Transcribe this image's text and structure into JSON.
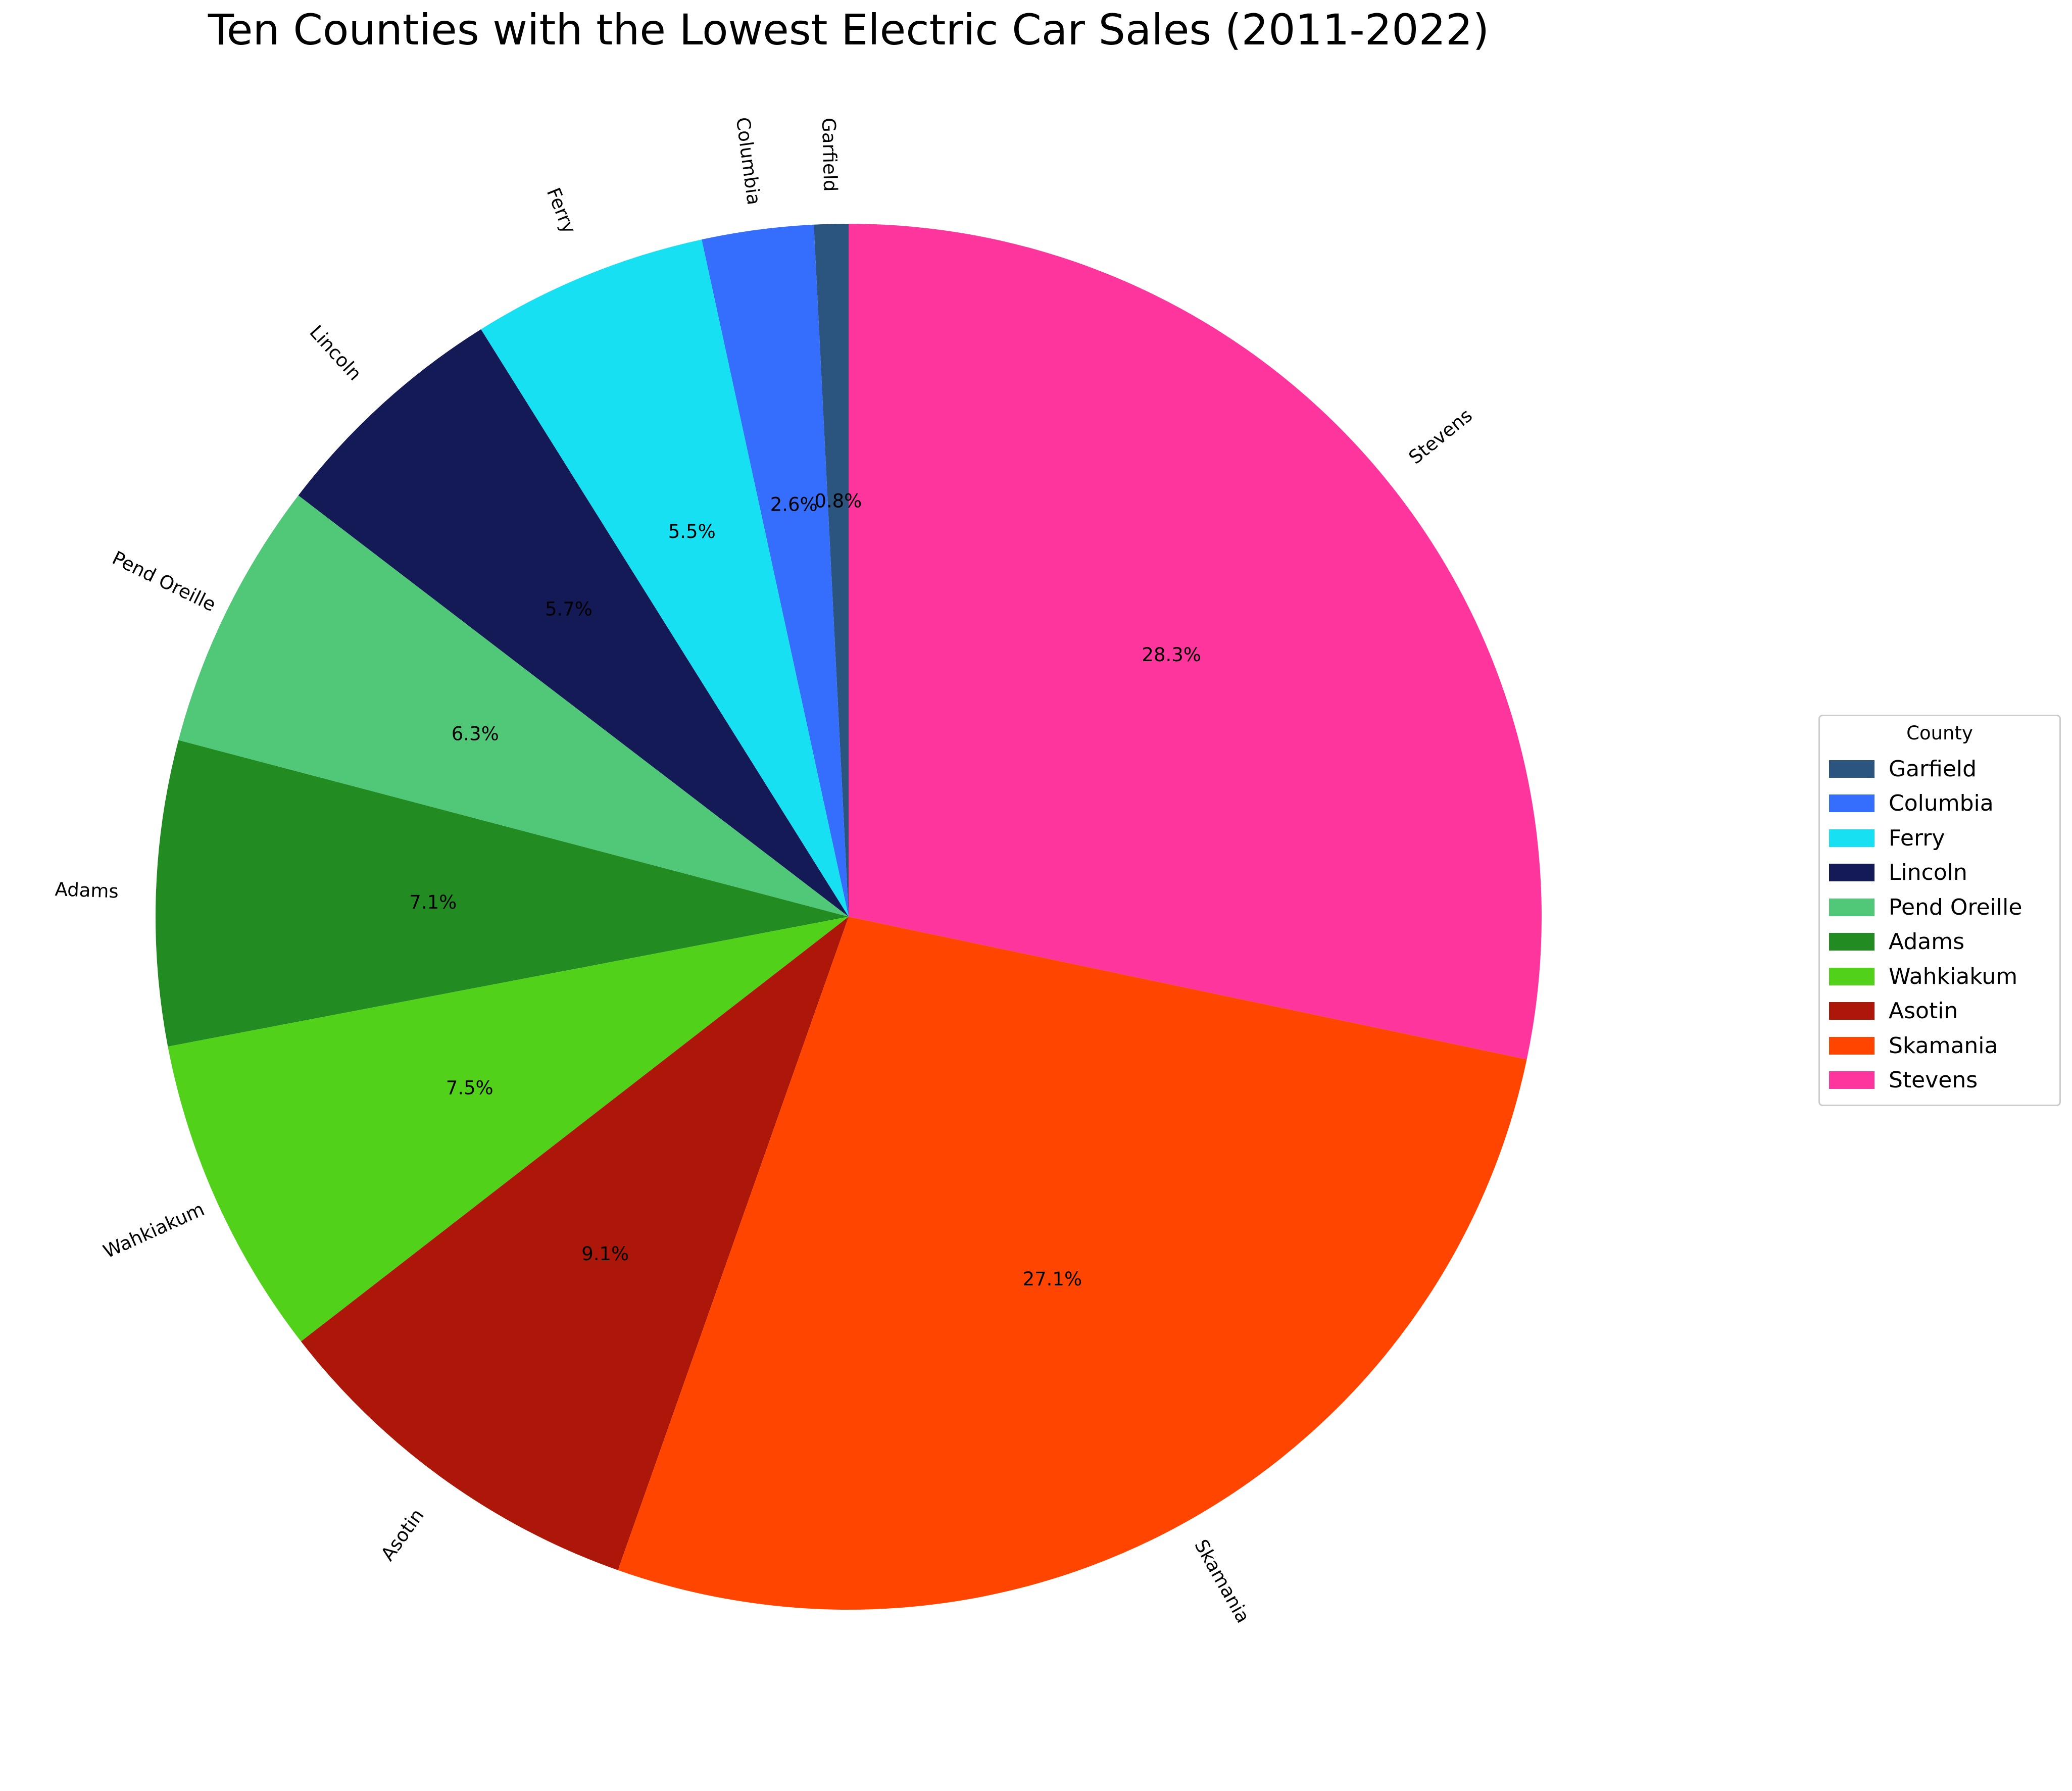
{
  "chart_data": {
    "type": "pie",
    "title": "Ten Counties with the Lowest Electric Car Sales (2011-2022)",
    "legend_title": "County",
    "legend_placement": "center-right",
    "start_angle_deg": 90,
    "direction": "counterclockwise",
    "slices": [
      {
        "name": "Garfield",
        "pct_label": "0.8%",
        "value": 0.8,
        "color": "#2b557f"
      },
      {
        "name": "Columbia",
        "pct_label": "2.6%",
        "value": 2.6,
        "color": "#356dfc"
      },
      {
        "name": "Ferry",
        "pct_label": "5.5%",
        "value": 5.5,
        "color": "#17e0f2"
      },
      {
        "name": "Lincoln",
        "pct_label": "5.7%",
        "value": 5.7,
        "color": "#141a55"
      },
      {
        "name": "Pend Oreille",
        "pct_label": "6.3%",
        "value": 6.3,
        "color": "#50c878"
      },
      {
        "name": "Adams",
        "pct_label": "7.1%",
        "value": 7.1,
        "color": "#228b22"
      },
      {
        "name": "Wahkiakum",
        "pct_label": "7.5%",
        "value": 7.5,
        "color": "#51d11a"
      },
      {
        "name": "Asotin",
        "pct_label": "9.1%",
        "value": 9.1,
        "color": "#ad1709"
      },
      {
        "name": "Skamania",
        "pct_label": "27.1%",
        "value": 27.1,
        "color": "#ff4500"
      },
      {
        "name": "Stevens",
        "pct_label": "28.3%",
        "value": 28.3,
        "color": "#ff359e"
      }
    ]
  }
}
